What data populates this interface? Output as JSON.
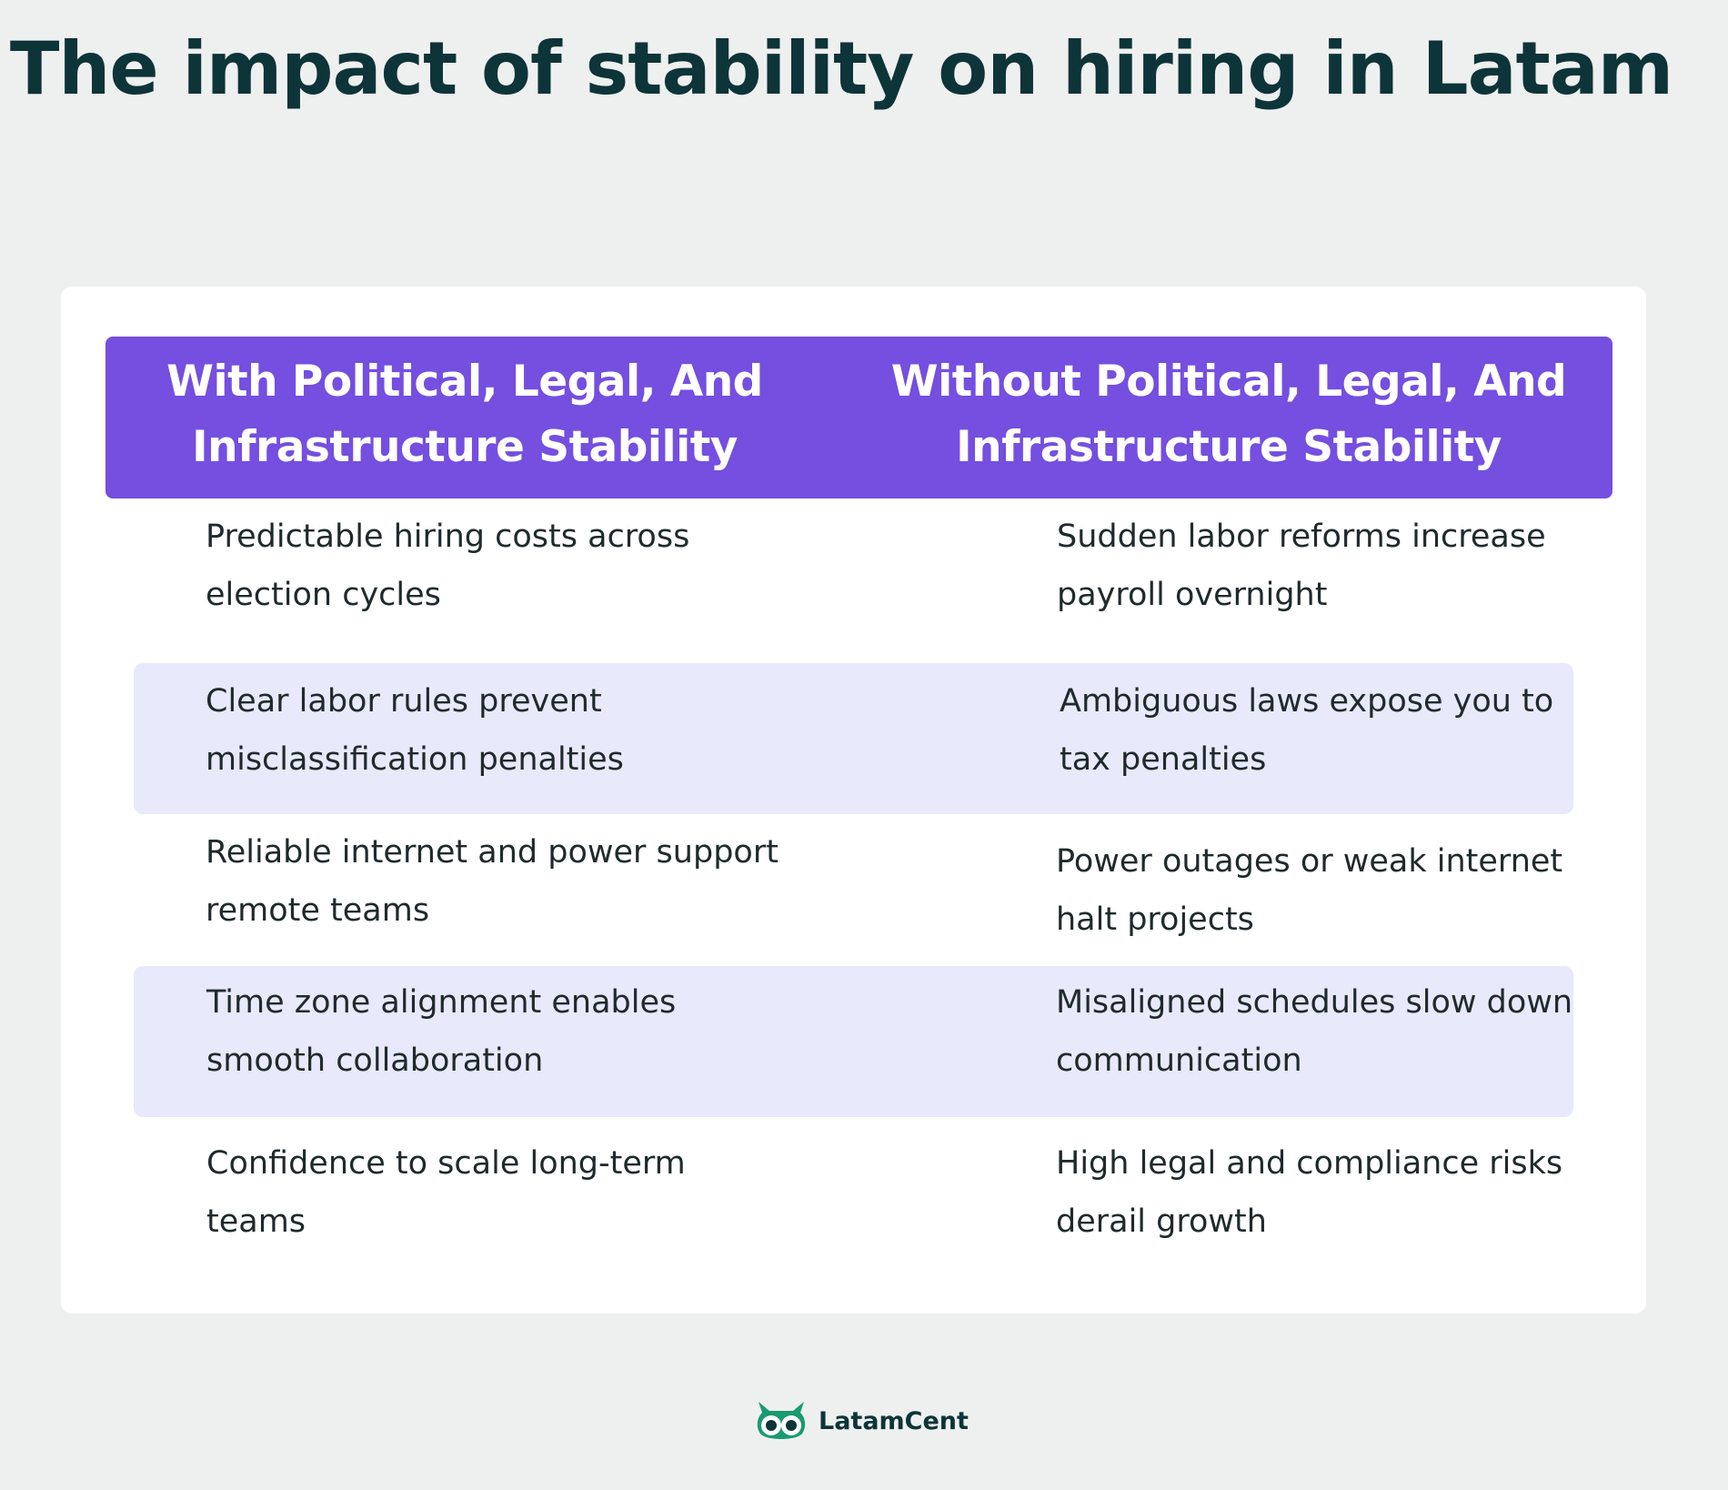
{
  "title": "The impact of stability on hiring in Latam",
  "table": {
    "headers": [
      "With Political, Legal, And Infrastructure Stability",
      "Without Political, Legal, And Infrastructure Stability"
    ],
    "rows": [
      {
        "with": "Predictable hiring costs across election cycles",
        "without": "Sudden labor reforms increase payroll overnight"
      },
      {
        "with": "Clear labor rules prevent misclassification penalties",
        "without": "Ambiguous laws expose you to tax penalties"
      },
      {
        "with": "Reliable internet and power support remote teams",
        "without": "Power outages or weak internet halt projects"
      },
      {
        "with": "Time zone alignment enables smooth collaboration",
        "without": "Misaligned schedules slow down communication"
      },
      {
        "with": "Confidence to scale long-term teams",
        "without": "High legal and compliance risks derail growth"
      }
    ]
  },
  "brand": {
    "name": "LatamCent",
    "icon": "owl-icon"
  },
  "colors": {
    "background": "#eef0ef",
    "title": "#0d3438",
    "header": "#744fe0",
    "row_shade": "#e8e9fb",
    "brand_green": "#1a9a70"
  }
}
